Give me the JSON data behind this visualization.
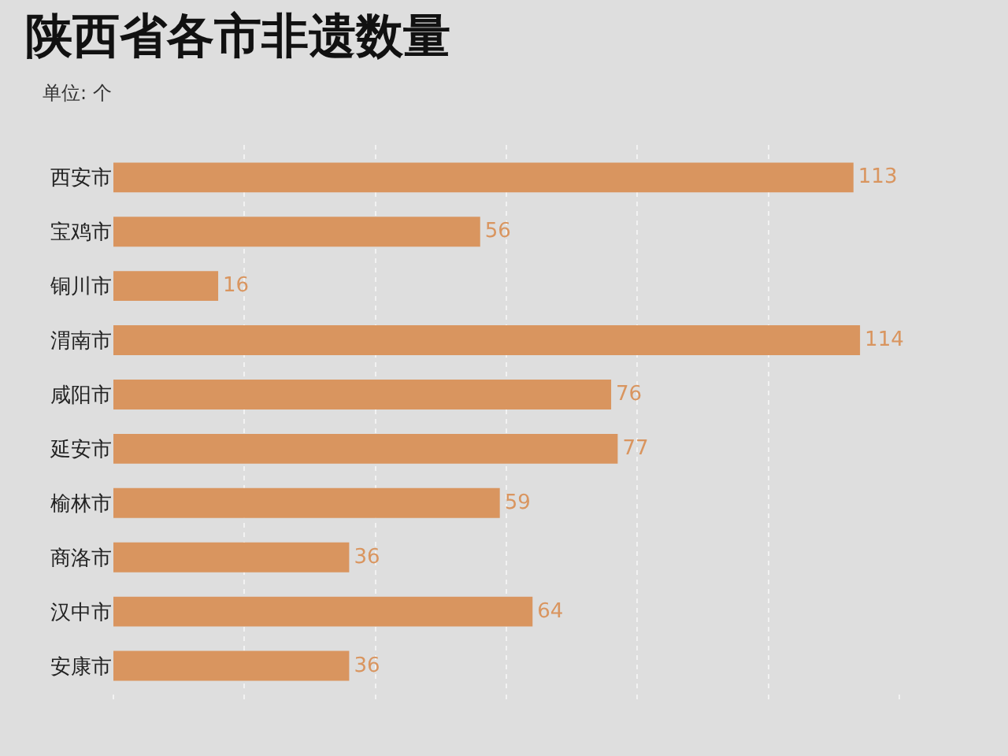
{
  "chart_data": {
    "type": "bar",
    "orientation": "horizontal",
    "title": "陕西省各市非遗数量",
    "subtitle": "单位: 个",
    "categories": [
      "西安市",
      "宝鸡市",
      "铜川市",
      "渭南市",
      "咸阳市",
      "延安市",
      "榆林市",
      "商洛市",
      "汉中市",
      "安康市"
    ],
    "values": [
      113,
      56,
      16,
      114,
      76,
      77,
      59,
      36,
      64,
      36
    ],
    "color": "#d9955f",
    "data_labels": true,
    "grid": "x",
    "tick_labels": "y",
    "legend": false,
    "xticks": [
      {
        "value": 0,
        "label": null
      },
      {
        "value": 20,
        "label": null
      },
      {
        "value": 40,
        "label": null
      },
      {
        "value": 60,
        "label": null
      },
      {
        "value": 80,
        "label": null
      },
      {
        "value": 100,
        "label": null
      },
      {
        "value": 120,
        "label": null
      }
    ]
  }
}
